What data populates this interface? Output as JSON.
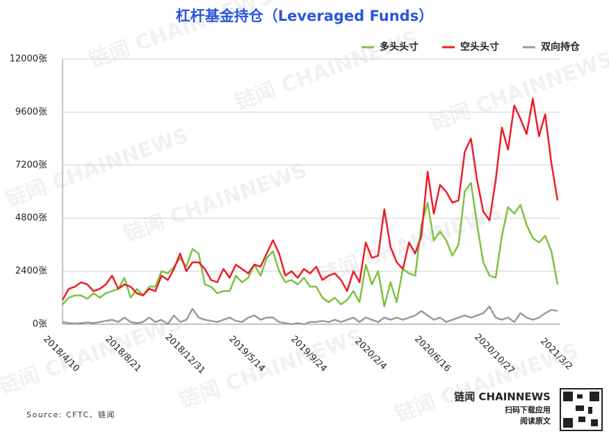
{
  "chart_data": {
    "type": "line",
    "title": "杠杆基金持仓（Leveraged Funds）",
    "categories": [
      "2018/4/10",
      null,
      null,
      null,
      null,
      null,
      null,
      null,
      null,
      null,
      "2018/8/21",
      null,
      null,
      null,
      null,
      null,
      null,
      null,
      null,
      null,
      "2018/12/31",
      null,
      null,
      null,
      null,
      null,
      null,
      null,
      null,
      null,
      "2019/5/14",
      null,
      null,
      null,
      null,
      null,
      null,
      null,
      null,
      null,
      "2019/9/24",
      null,
      null,
      null,
      null,
      null,
      null,
      null,
      null,
      null,
      "2020/2/4",
      null,
      null,
      null,
      null,
      null,
      null,
      null,
      null,
      null,
      "2020/6/16",
      null,
      null,
      null,
      null,
      null,
      null,
      null,
      null,
      null,
      "2020/10/27",
      null,
      null,
      null,
      null,
      null,
      null,
      null,
      null,
      null,
      "2021/3/2"
    ],
    "series": [
      {
        "name": "多头头寸",
        "color": "#7dc142",
        "values": [
          900,
          1200,
          1300,
          1300,
          1150,
          1400,
          1200,
          1400,
          1500,
          1600,
          2100,
          1200,
          1600,
          1300,
          1700,
          1700,
          2400,
          2300,
          2600,
          3000,
          2600,
          3400,
          3200,
          1800,
          1700,
          1400,
          1500,
          1500,
          2200,
          1900,
          2100,
          2700,
          2200,
          3000,
          3300,
          2400,
          1900,
          2000,
          1800,
          2100,
          1700,
          1700,
          1200,
          1000,
          1200,
          900,
          1100,
          1500,
          1000,
          2700,
          1800,
          2400,
          800,
          1900,
          1000,
          2500,
          2300,
          2200,
          4500,
          5500,
          3800,
          4200,
          3800,
          3100,
          3600,
          6000,
          6400,
          4500,
          2800,
          2200,
          2100,
          4000,
          5300,
          5000,
          5400,
          4500,
          3900,
          3700,
          4000,
          3300,
          1800
        ]
      },
      {
        "name": "空头头寸",
        "color": "#ee1c25",
        "values": [
          1100,
          1600,
          1700,
          1900,
          1800,
          1500,
          1600,
          1800,
          2200,
          1600,
          1800,
          1700,
          1400,
          1300,
          1600,
          1500,
          2200,
          2000,
          2500,
          3200,
          2400,
          2800,
          2800,
          2500,
          2000,
          1900,
          2500,
          2100,
          2700,
          2500,
          2300,
          2700,
          2600,
          3200,
          3800,
          3200,
          2200,
          2400,
          2100,
          2500,
          2300,
          2600,
          2000,
          2200,
          2300,
          2000,
          1500,
          2400,
          1900,
          3700,
          3000,
          3100,
          5200,
          3500,
          2800,
          2500,
          3700,
          3200,
          4000,
          6900,
          5000,
          6300,
          6000,
          5500,
          5600,
          7800,
          8400,
          6500,
          5100,
          4700,
          6500,
          8900,
          7900,
          9900,
          9300,
          8600,
          10200,
          8500,
          9500,
          7300,
          5600
        ]
      },
      {
        "name": "双向持仓",
        "color": "#9a9a9a",
        "values": [
          100,
          50,
          30,
          50,
          80,
          50,
          100,
          150,
          200,
          100,
          300,
          100,
          50,
          100,
          300,
          100,
          200,
          0,
          400,
          100,
          200,
          700,
          300,
          200,
          150,
          100,
          200,
          300,
          150,
          100,
          300,
          400,
          200,
          300,
          300,
          100,
          50,
          0,
          50,
          0,
          100,
          100,
          150,
          100,
          200,
          100,
          200,
          300,
          100,
          300,
          200,
          100,
          300,
          200,
          300,
          200,
          300,
          400,
          600,
          400,
          200,
          300,
          100,
          200,
          300,
          400,
          300,
          400,
          500,
          800,
          300,
          200,
          300,
          100,
          500,
          300,
          200,
          300,
          500,
          650,
          600
        ]
      }
    ],
    "ylim": [
      0,
      12000
    ],
    "yticks": [
      {
        "value": 0,
        "label": "0张"
      },
      {
        "value": 2400,
        "label": "2400张"
      },
      {
        "value": 4800,
        "label": "4800张"
      },
      {
        "value": 7200,
        "label": "7200张"
      },
      {
        "value": 9600,
        "label": "9600张"
      },
      {
        "value": 12000,
        "label": "12000张"
      }
    ],
    "grid": true,
    "legend": "top-right",
    "source": "Source: CFTC、链闻",
    "watermark": "链闻 CHAINNEWS",
    "logo": "链闻 CHAINNEWS",
    "qr_caption_1": "扫码下载应用",
    "qr_caption_2": "阅读原文"
  }
}
